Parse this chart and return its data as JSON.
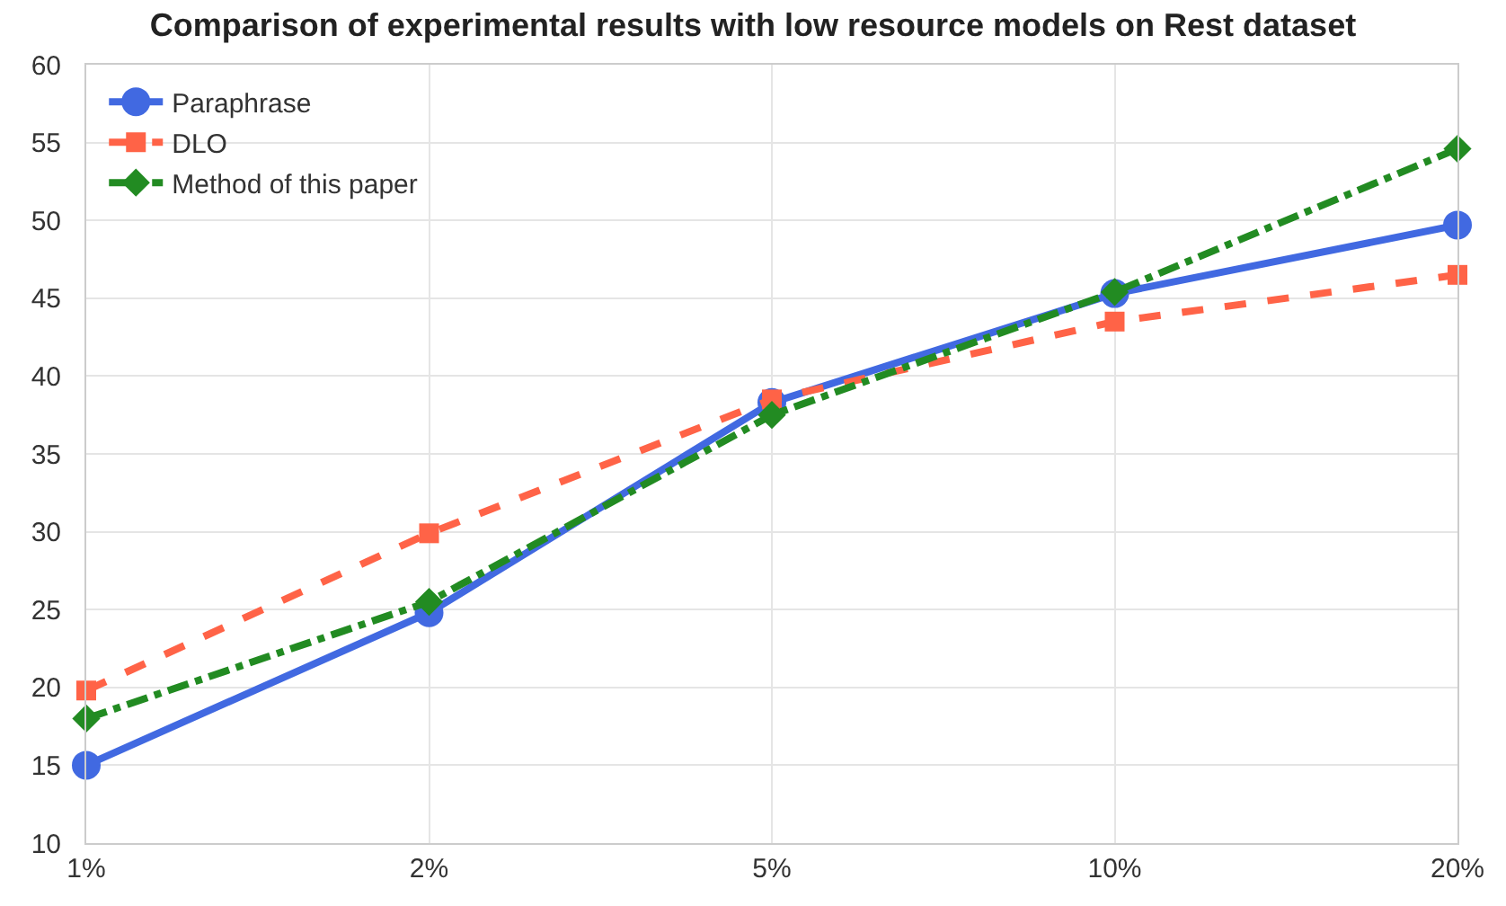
{
  "chart_data": {
    "type": "line",
    "title": "Comparison of experimental results with low resource models on Rest dataset",
    "categories": [
      "1%",
      "2%",
      "5%",
      "10%",
      "20%"
    ],
    "series": [
      {
        "name": "Paraphrase",
        "color": "#4169e1",
        "marker": "circle",
        "line_style": "solid",
        "values": [
          15,
          24.8,
          38.3,
          45.3,
          49.7
        ]
      },
      {
        "name": "DLO",
        "color": "#ff6347",
        "marker": "square",
        "line_style": "dashed",
        "values": [
          19.8,
          29.9,
          38.5,
          43.5,
          46.5
        ]
      },
      {
        "name": "Method of this paper",
        "color": "#228b22",
        "marker": "diamond",
        "line_style": "dashdot",
        "values": [
          18,
          25.5,
          37.5,
          45.4,
          54.6
        ]
      }
    ],
    "ylim": [
      10,
      60
    ],
    "yticks": [
      10,
      15,
      20,
      25,
      30,
      35,
      40,
      45,
      50,
      55,
      60
    ],
    "grid": true,
    "legend": "top left"
  }
}
